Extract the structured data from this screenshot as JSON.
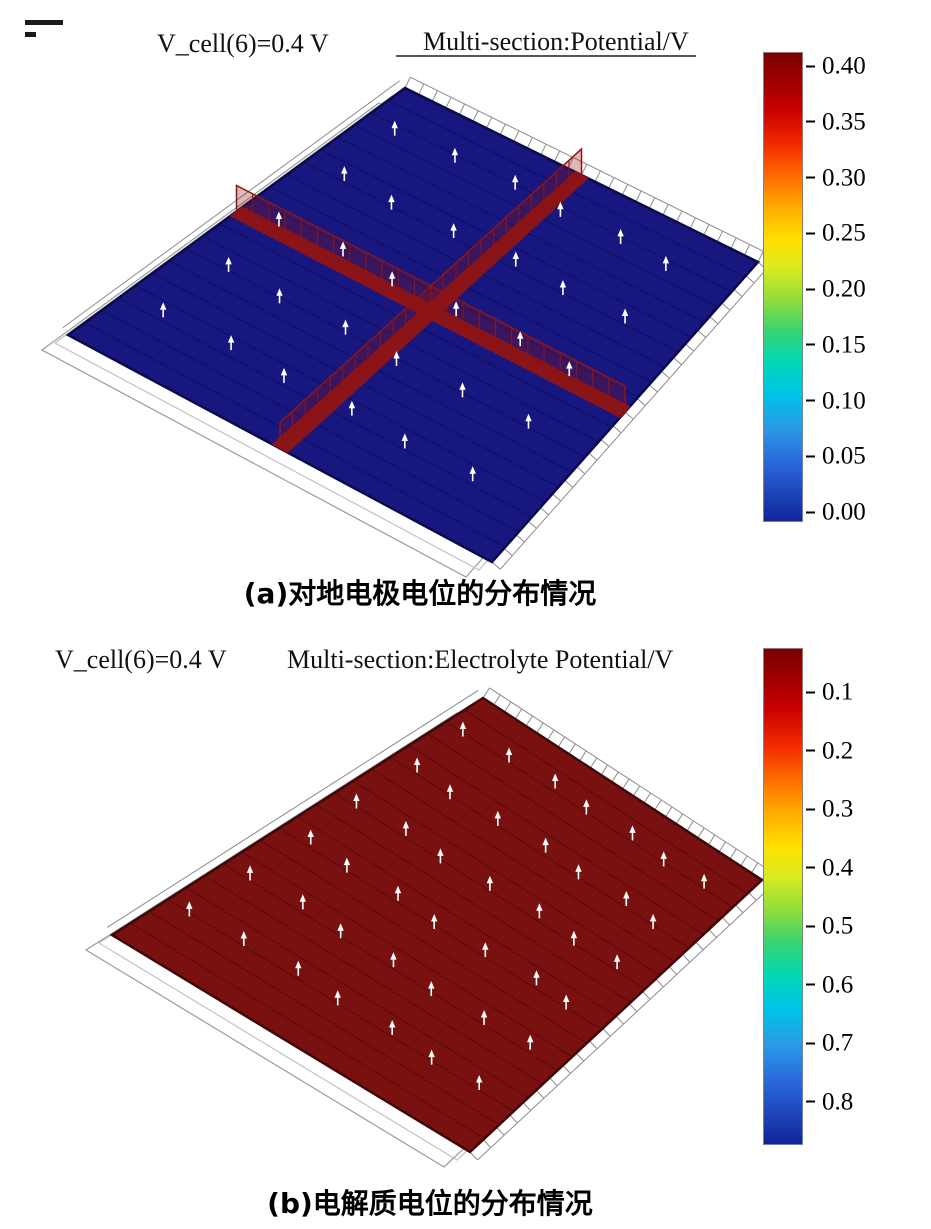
{
  "plots": [
    {
      "title_left": "V_cell(6)=0.4 V",
      "title_right": "Multi-section:Potential/V",
      "caption": "(a)对地电极电位的分布情况",
      "surface_color": "#17177f",
      "surface_edge": "#0a0a4a",
      "stripe_color": "rgba(8,8,70,0.5)",
      "slice_color": "#8f1414",
      "arrow_color": "#ffffff",
      "colorbar_ticks": [
        "0.40",
        "0.35",
        "0.30",
        "0.25",
        "0.20",
        "0.15",
        "0.10",
        "0.05",
        "0.00"
      ]
    },
    {
      "title_left": "V_cell(6)=0.4 V",
      "title_right": "Multi-section:Electrolyte Potential/V",
      "caption": "(b)电解质电位的分布情况",
      "surface_color": "#7a1111",
      "surface_edge": "#3f0707",
      "stripe_color": "rgba(60,6,6,0.5)",
      "arrow_color": "#ffffff",
      "colorbar_ticks": [
        "0.1",
        "0.2",
        "0.3",
        "0.4",
        "0.5",
        "0.6",
        "0.7",
        "0.8"
      ]
    }
  ],
  "chart_data": [
    {
      "type": "heatmap",
      "title": "Multi-section:Potential/V",
      "condition_label": "V_cell(6)=0.4 V",
      "caption": "(a)对地电极电位的分布情况",
      "colormap": "jet",
      "colorbar_range": [
        0.0,
        0.4
      ],
      "colorbar_ticks": [
        0.4,
        0.35,
        0.3,
        0.25,
        0.2,
        0.15,
        0.1,
        0.05,
        0.0
      ],
      "surface_value": 0.0,
      "cross_section_slice_value": 0.4,
      "legend_position": "right",
      "description": "3D isometric plate surface mostly at ~0 V (dark blue) with two perpendicular cross-section slices at ~0.4 V (dark red) and white arrow glyphs over the surface"
    },
    {
      "type": "heatmap",
      "title": "Multi-section:Electrolyte Potential/V",
      "condition_label": "V_cell(6)=0.4 V",
      "caption": "(b)电解质电位的分布情况",
      "colormap": "jet",
      "colorbar_range": [
        0.1,
        0.8
      ],
      "colorbar_ticks": [
        0.1,
        0.2,
        0.3,
        0.4,
        0.5,
        0.6,
        0.7,
        0.8
      ],
      "colorbar_axis_direction": "values increase downward",
      "surface_value": 0.1,
      "legend_position": "right",
      "description": "3D isometric plate surface uniformly dark red (~0.1 V) with white arrow glyphs over the surface"
    }
  ]
}
